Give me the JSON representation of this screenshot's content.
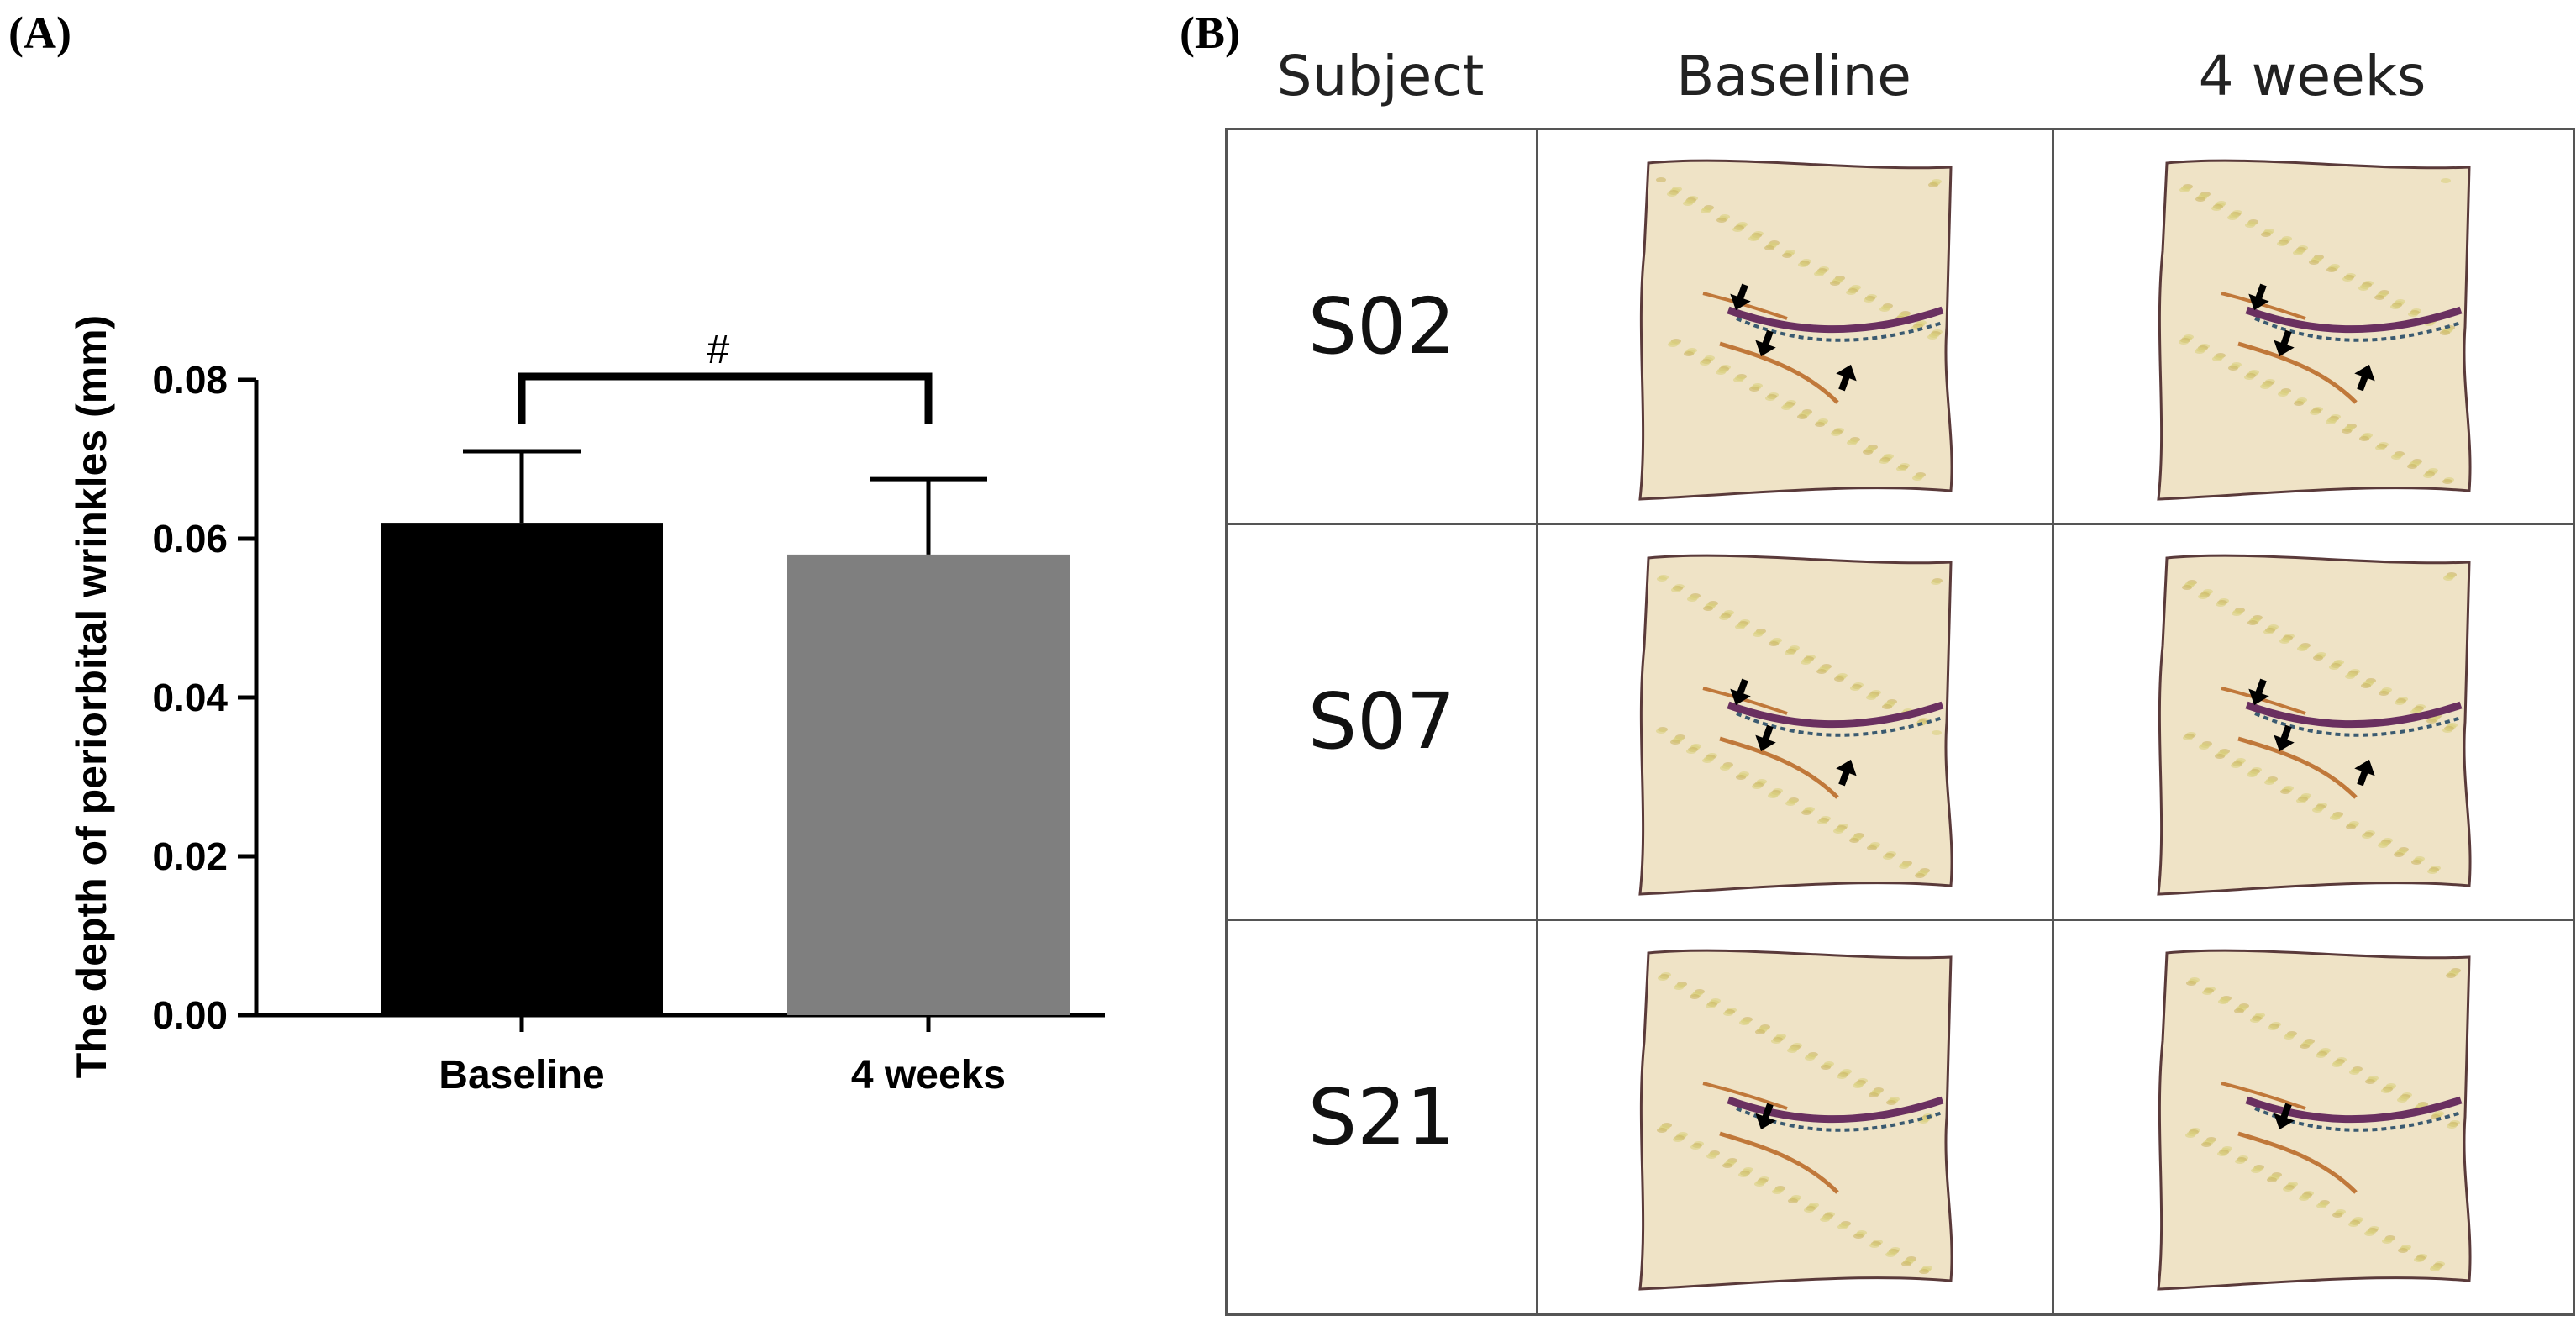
{
  "panel_labels": {
    "a": "(A)",
    "b": "(B)"
  },
  "chart_data": {
    "type": "bar",
    "title": "",
    "xlabel": "",
    "ylabel": "The depth of periorbital wrinkles (mm)",
    "categories": [
      "Baseline",
      "4 weeks"
    ],
    "values": [
      0.062,
      0.058
    ],
    "errors": [
      0.009,
      0.0095
    ],
    "bar_colors": [
      "#000000",
      "#7f7f7f"
    ],
    "ylim": [
      0,
      0.08
    ],
    "yticks": [
      "0.00",
      "0.02",
      "0.04",
      "0.06",
      "0.08"
    ],
    "ytick_values": [
      0,
      0.02,
      0.04,
      0.06,
      0.08
    ],
    "significance": {
      "symbol": "#",
      "between": [
        "Baseline",
        "4 weeks"
      ]
    },
    "grid": false
  },
  "panel_b": {
    "headers": {
      "subject": "Subject",
      "baseline": "Baseline",
      "weeks4": "4 weeks"
    },
    "rows": [
      {
        "subject": "S02",
        "baseline_arrows": 3,
        "weeks4_arrows": 3
      },
      {
        "subject": "S07",
        "baseline_arrows": 3,
        "weeks4_arrows": 3
      },
      {
        "subject": "S21",
        "baseline_arrows": 1,
        "weeks4_arrows": 1
      }
    ],
    "colors": {
      "skin": "#efe3c6",
      "wrinkle": "#c0783a",
      "eyelid": "#6a3060",
      "arrow": "#000000"
    }
  }
}
